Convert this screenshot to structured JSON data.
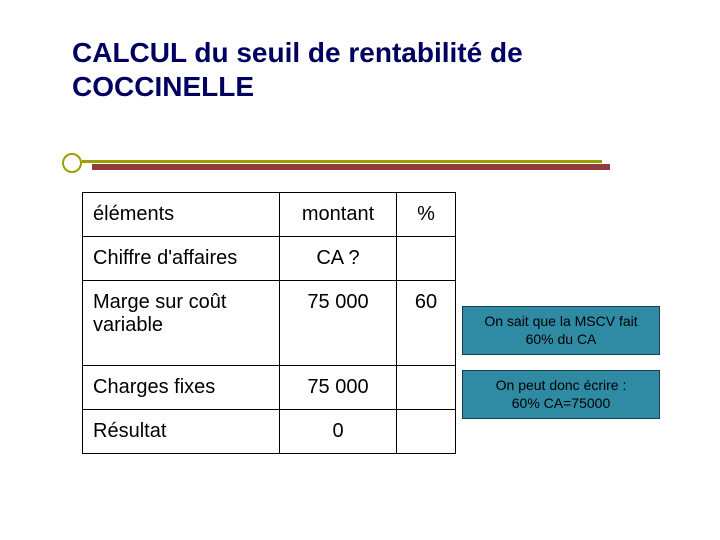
{
  "title_line1": "CALCUL du seuil de rentabilité de",
  "title_line2": "COCCINELLE",
  "table": {
    "header": {
      "col1": "éléments",
      "col2": "montant",
      "col3": "%"
    },
    "rows": [
      {
        "label": "Chiffre d'affaires",
        "montant": "CA ?",
        "pct": ""
      },
      {
        "label": "Marge sur coût variable",
        "montant": "75 000",
        "pct": "60"
      },
      {
        "label": "Charges fixes",
        "montant": "75 000",
        "pct": ""
      },
      {
        "label": "Résultat",
        "montant": "0",
        "pct": ""
      }
    ]
  },
  "notes": {
    "n1_line1": "On sait que la MSCV fait",
    "n1_line2": "60% du CA",
    "n2_line1": "On peut donc écrire :",
    "n2_line2": "60% CA=75000"
  },
  "colors": {
    "title": "#000060",
    "accent": "#9aa000",
    "accent_shadow": "#7a1a1a",
    "note_bg": "#2f8aa3",
    "note_border": "#1a3a5a",
    "table_border": "#000000",
    "background": "#ffffff"
  },
  "fonts": {
    "title_size_pt": 22,
    "table_size_pt": 15,
    "note_size_pt": 11
  }
}
